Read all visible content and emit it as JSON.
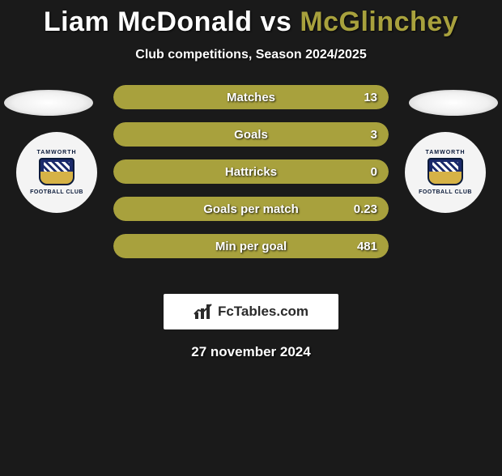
{
  "title": {
    "player1": "Liam McDonald",
    "vs": "vs",
    "player2": "McGlinchey"
  },
  "subtitle": "Club competitions, Season 2024/2025",
  "club": {
    "name_top": "TAMWORTH",
    "name_bottom": "FOOTBALL CLUB"
  },
  "colors": {
    "accent": "#a8a13d",
    "bar_bg": "#232323",
    "page_bg": "#1a1a1a",
    "text": "#ffffff"
  },
  "stats": [
    {
      "label": "Matches",
      "value": "13",
      "left_pct": 44,
      "right_pct": 56
    },
    {
      "label": "Goals",
      "value": "3",
      "left_pct": 48,
      "right_pct": 52
    },
    {
      "label": "Hattricks",
      "value": "0",
      "left_pct": 50,
      "right_pct": 50
    },
    {
      "label": "Goals per match",
      "value": "0.23",
      "left_pct": 48,
      "right_pct": 52
    },
    {
      "label": "Min per goal",
      "value": "481",
      "left_pct": 45,
      "right_pct": 55
    }
  ],
  "branding": {
    "site": "FcTables.com"
  },
  "date": "27 november 2024"
}
